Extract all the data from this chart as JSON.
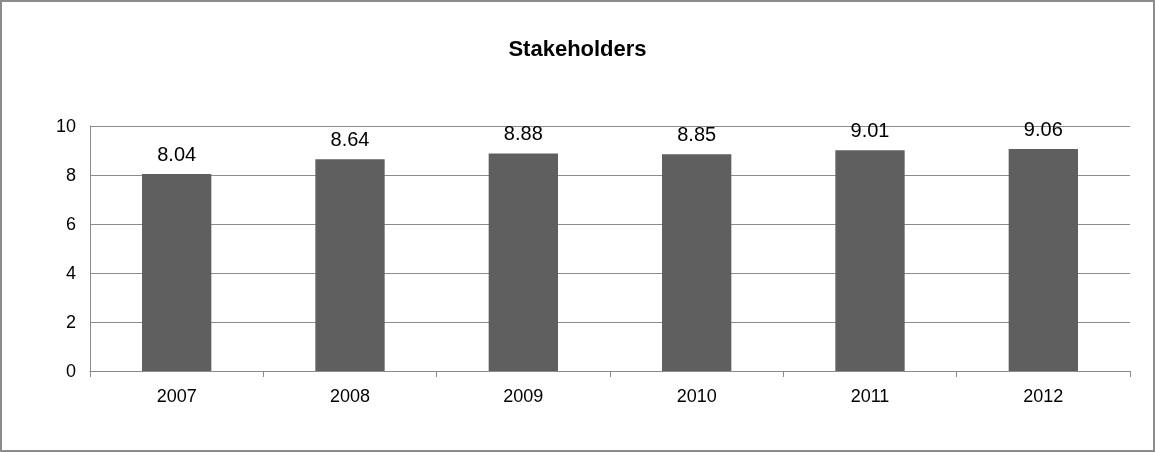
{
  "chart_data": {
    "type": "bar",
    "title": "Stakeholders",
    "categories": [
      "2007",
      "2008",
      "2009",
      "2010",
      "2011",
      "2012"
    ],
    "values": [
      8.04,
      8.64,
      8.88,
      8.85,
      9.01,
      9.06
    ],
    "color": "#5f5f5f",
    "ylim": [
      0,
      10
    ],
    "yticks": [
      0,
      2,
      4,
      6,
      8,
      10
    ],
    "grid": "y",
    "data_labels": true
  }
}
